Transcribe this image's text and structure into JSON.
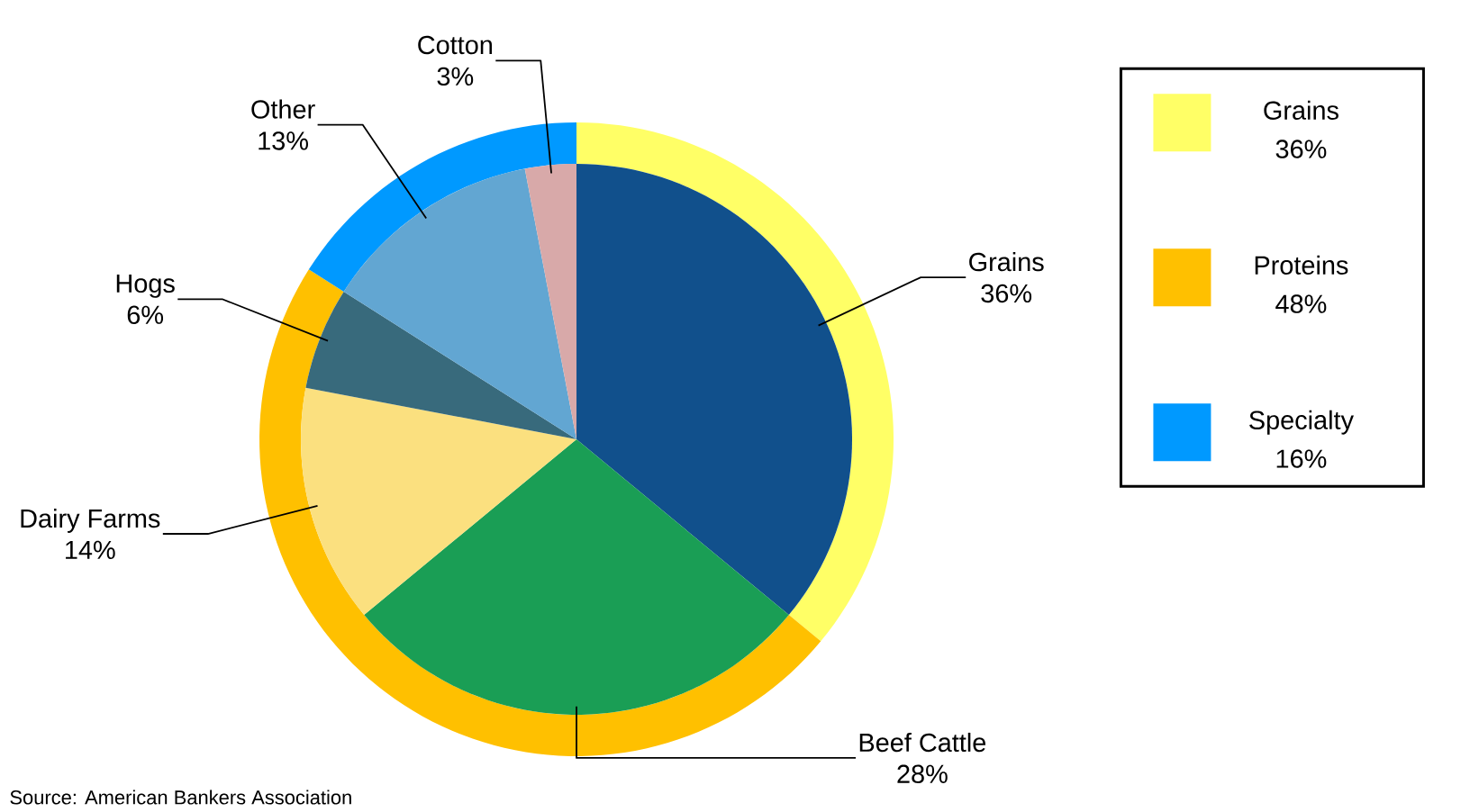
{
  "chart_data": [
    {
      "type": "pie",
      "categories": [
        "Grains",
        "Beef Cattle",
        "Dairy Farms",
        "Hogs",
        "Other",
        "Cotton"
      ],
      "values": [
        36,
        28,
        14,
        6,
        13,
        3
      ],
      "colors": [
        "#11508c",
        "#1a9e55",
        "#fbe07f",
        "#386a7c",
        "#62a6d2",
        "#d8a9a9"
      ],
      "value_labels": [
        "36%",
        "28%",
        "14%",
        "6%",
        "13%",
        "3%"
      ],
      "annotations": [
        "Source: American Bankers Association"
      ]
    },
    {
      "type": "donut",
      "categories": [
        "Grains",
        "Proteins",
        "Specialty"
      ],
      "values": [
        36,
        48,
        16
      ],
      "colors": [
        "#ffff66",
        "#ffc000",
        "#0099ff"
      ],
      "value_labels": [
        "36%",
        "48%",
        "16%"
      ],
      "legend": "right"
    }
  ]
}
